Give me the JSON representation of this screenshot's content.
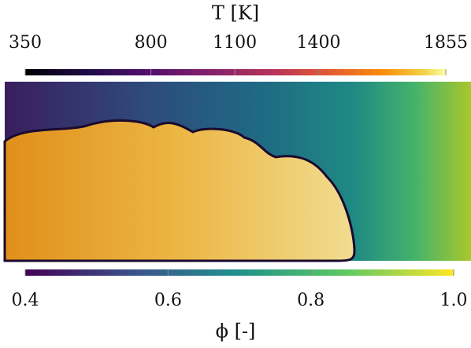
{
  "top_colorbar": {
    "label": "T [K]",
    "colormap": "inferno",
    "range": [
      350,
      1855
    ],
    "ticks": [
      350,
      800,
      1100,
      1400,
      1855
    ]
  },
  "bottom_colorbar": {
    "label": "ϕ [-]",
    "colormap": "viridis",
    "range": [
      0.4,
      1.0
    ],
    "ticks": [
      0.4,
      0.6,
      0.8,
      {
        "value": 1.0,
        "label": "1.0"
      }
    ]
  }
}
